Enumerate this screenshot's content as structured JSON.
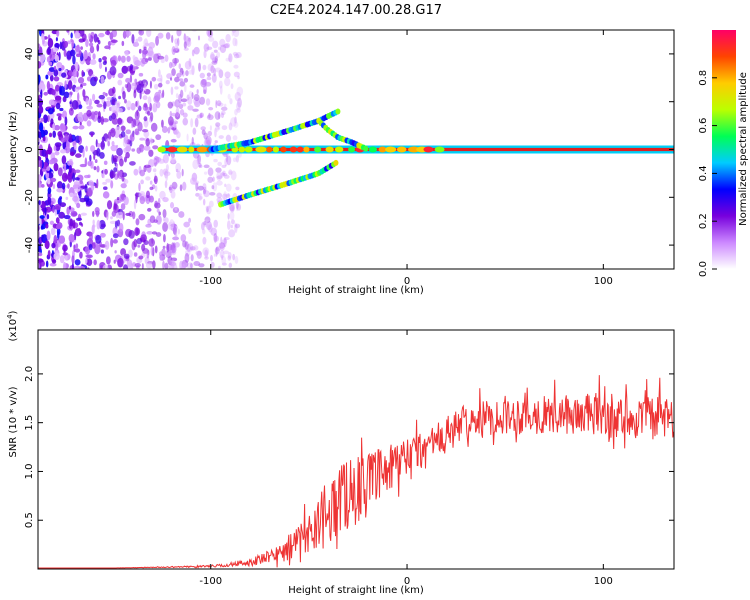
{
  "title": "C2E4.2024.147.00.28.G17",
  "colors": {
    "snr_line": "#ee3333",
    "center_line": "#dd2222"
  },
  "colorbar": {
    "label": "Normalized spectral amplitude",
    "ticks": [
      "0.0",
      "0.2",
      "0.4",
      "0.6",
      "0.8"
    ],
    "tick_values": [
      0.0,
      0.2,
      0.4,
      0.6,
      0.8
    ],
    "range": [
      0,
      1
    ],
    "colormap": [
      "#ffffff",
      "#cc88ff",
      "#7700dd",
      "#0000ff",
      "#00ccff",
      "#00ff55",
      "#bbff00",
      "#ffcc00",
      "#ff4400",
      "#ff0066"
    ]
  },
  "chart_data": [
    {
      "type": "heatmap",
      "xlabel": "Height of straight line (km)",
      "ylabel": "Frequency (Hz)",
      "xlim": [
        -188,
        136
      ],
      "ylim": [
        -50,
        50
      ],
      "xticks": [
        -100,
        0,
        100
      ],
      "xtick_labels": [
        "-100",
        "0",
        "100"
      ],
      "yticks": [
        -40,
        -20,
        0,
        20,
        40
      ],
      "ytick_labels": [
        "-40",
        "-20",
        "0",
        "20",
        "40"
      ],
      "features": [
        {
          "name": "noise",
          "x_range": [
            -188,
            -85
          ],
          "freq_range": [
            -50,
            50
          ]
        },
        {
          "name": "carrier",
          "x_range": [
            -125,
            136
          ],
          "freq": 0
        },
        {
          "name": "upper_branch",
          "x": [
            -100,
            -80,
            -60,
            -45,
            -35
          ],
          "freq": [
            0,
            3,
            8,
            12,
            16
          ]
        },
        {
          "name": "lower_branch",
          "x": [
            -95,
            -80,
            -60,
            -45,
            -35
          ],
          "freq": [
            -23,
            -19,
            -14,
            -10,
            -5
          ]
        },
        {
          "name": "converging_branch",
          "x": [
            -45,
            -40,
            -35,
            -28,
            -20
          ],
          "freq": [
            12,
            8,
            5,
            3,
            0
          ]
        }
      ]
    },
    {
      "type": "line",
      "xlabel": "Height of straight line (km)",
      "ylabel": "SNR (10 * v/v)",
      "y_exponent": "(x10",
      "y_exponent_power": "4",
      "y_exponent_close": ")",
      "xlim": [
        -188,
        136
      ],
      "ylim": [
        0,
        2.45
      ],
      "xticks": [
        -100,
        0,
        100
      ],
      "xtick_labels": [
        "-100",
        "0",
        "100"
      ],
      "yticks": [
        0.5,
        1.0,
        1.5,
        2.0
      ],
      "ytick_labels": [
        "0.5",
        "1.0",
        "1.5",
        "2.0"
      ],
      "series": [
        {
          "x": [
            -188,
            -150,
            -120,
            -100,
            -90,
            -80,
            -70,
            -60,
            -50,
            -42,
            -35,
            -30,
            -20,
            -10,
            0,
            10,
            20,
            25,
            30,
            40,
            50,
            60,
            70,
            80,
            90,
            100,
            110,
            120,
            130,
            136
          ],
          "y": [
            0.01,
            0.01,
            0.02,
            0.03,
            0.04,
            0.07,
            0.12,
            0.22,
            0.38,
            0.55,
            0.72,
            0.78,
            0.9,
            1.0,
            1.12,
            1.25,
            1.35,
            1.45,
            1.5,
            1.55,
            1.58,
            1.58,
            1.58,
            1.58,
            1.58,
            1.58,
            1.55,
            1.55,
            1.55,
            1.55
          ],
          "noise": [
            0.0,
            0.0,
            0.005,
            0.01,
            0.02,
            0.04,
            0.07,
            0.12,
            0.2,
            0.32,
            0.4,
            0.38,
            0.28,
            0.26,
            0.24,
            0.22,
            0.2,
            0.18,
            0.17,
            0.18,
            0.2,
            0.2,
            0.2,
            0.2,
            0.22,
            0.24,
            0.22,
            0.22,
            0.24,
            0.24
          ]
        }
      ]
    }
  ]
}
